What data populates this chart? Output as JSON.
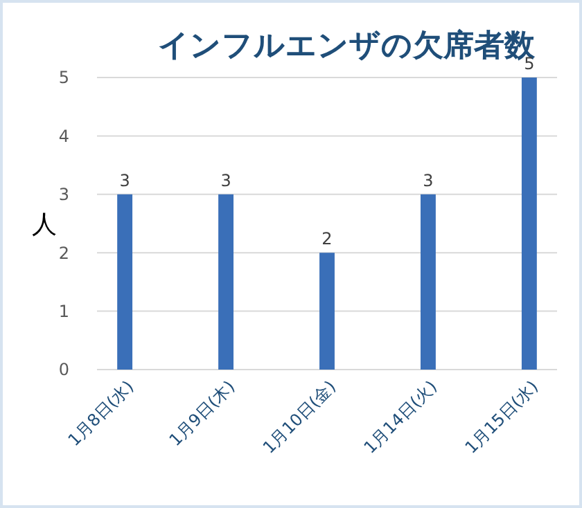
{
  "chart_data": {
    "type": "bar",
    "title": "インフルエンザの欠席者数",
    "ylabel": "人",
    "categories": [
      "1月8日(水)",
      "1月9日(木)",
      "1月10日(金)",
      "1月14日(火)",
      "1月15日(水)"
    ],
    "values": [
      3,
      3,
      2,
      3,
      5
    ],
    "color": "#3a6fb8",
    "ylim": [
      0,
      5
    ],
    "yticks": [
      0,
      1,
      2,
      3,
      4,
      5
    ],
    "grid": "y",
    "data_labels": true
  }
}
